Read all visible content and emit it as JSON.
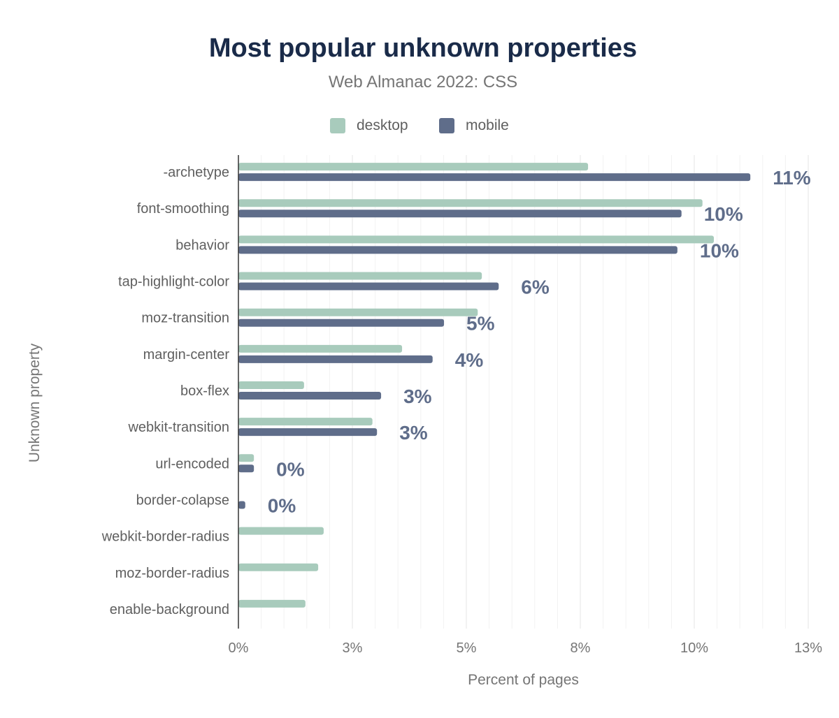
{
  "chart_data": {
    "type": "bar",
    "orientation": "horizontal",
    "title": "Most popular unknown properties",
    "subtitle": "Web Almanac 2022: CSS",
    "xlabel": "Percent of pages",
    "ylabel": "Unknown property",
    "xlim": [
      0,
      12.5
    ],
    "x_ticks": [
      0,
      2.5,
      5,
      7.5,
      10,
      12.5
    ],
    "x_tick_labels": [
      "0%",
      "3%",
      "5%",
      "8%",
      "10%",
      "13%"
    ],
    "grid": true,
    "legend_position": "top",
    "categories": [
      "-archetype",
      "font-smoothing",
      "behavior",
      "tap-highlight-color",
      "moz-transition",
      "margin-center",
      "box-flex",
      "webkit-transition",
      "url-encoded",
      "border-colapse",
      "webkit-border-radius",
      "moz-border-radius",
      "enable-background"
    ],
    "series": [
      {
        "name": "desktop",
        "color": "#a8cbbc",
        "values": [
          7.67,
          10.18,
          10.43,
          5.34,
          5.25,
          3.59,
          1.44,
          2.94,
          0.34,
          0,
          1.87,
          1.75,
          1.47
        ]
      },
      {
        "name": "mobile",
        "color": "#5f6d8a",
        "values": [
          11.23,
          9.72,
          9.63,
          5.71,
          4.51,
          4.26,
          3.13,
          3.04,
          0.34,
          0.15,
          null,
          null,
          null
        ],
        "data_labels": [
          "11%",
          "10%",
          "10%",
          "6%",
          "5%",
          "4%",
          "3%",
          "3%",
          "0%",
          "0%",
          null,
          null,
          null
        ]
      }
    ]
  }
}
